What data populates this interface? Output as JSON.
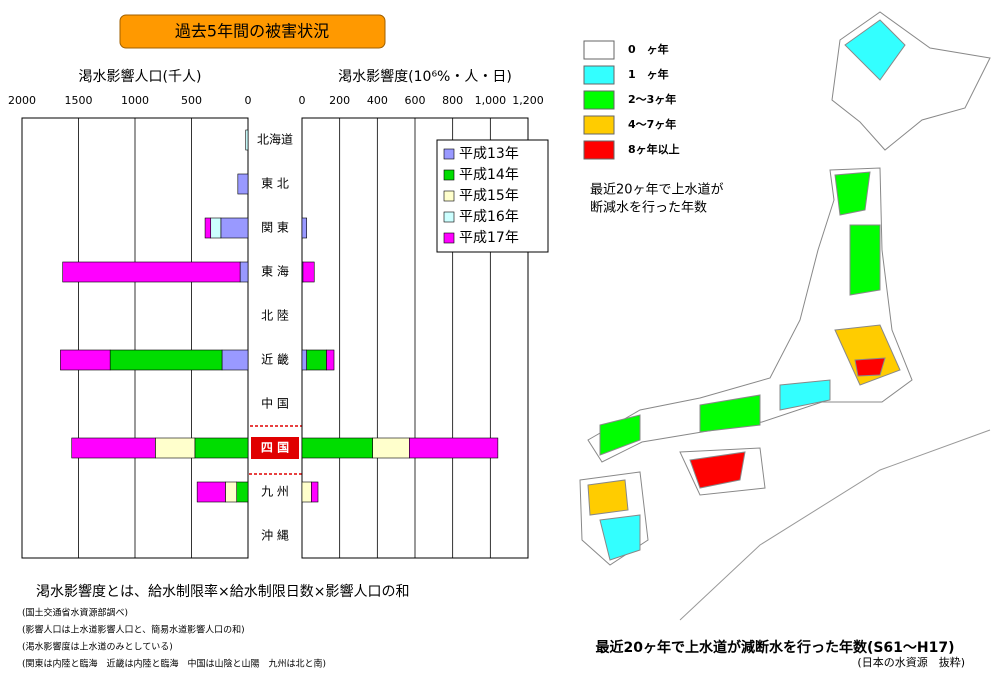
{
  "header": {
    "title": "過去5年間の被害状況"
  },
  "chart_data": {
    "type": "bar",
    "categories": [
      "北海道",
      "東 北",
      "関 東",
      "東 海",
      "北 陸",
      "近 畿",
      "中 国",
      "四 国",
      "九 州",
      "沖 縄"
    ],
    "highlight": 7,
    "x_label": "渇水影響人口(千人)",
    "xlim": [
      2000,
      0
    ],
    "xticks": [
      2000,
      1500,
      1000,
      500,
      0
    ],
    "x2_label": "渇水影響度(10⁶%・人・日)",
    "x2lim": [
      0,
      1200
    ],
    "x2ticks": [
      0,
      200,
      400,
      600,
      800,
      {
        "value": 1000,
        "label": "1,000"
      },
      {
        "value": 1200,
        "label": "1,200"
      }
    ],
    "grid": true,
    "series": [
      {
        "name": "平成13年",
        "color": "#9999ff",
        "values": [
          0,
          90,
          240,
          70,
          0,
          230,
          0,
          0,
          0,
          0
        ],
        "values2": [
          0,
          0,
          25,
          5,
          0,
          25,
          0,
          0,
          0,
          0
        ]
      },
      {
        "name": "平成14年",
        "color": "#00dd00",
        "values": [
          0,
          0,
          0,
          0,
          0,
          990,
          0,
          470,
          100,
          0
        ],
        "values2": [
          0,
          0,
          0,
          0,
          0,
          105,
          0,
          375,
          0,
          0
        ]
      },
      {
        "name": "平成15年",
        "color": "#ffffcc",
        "values": [
          0,
          0,
          0,
          0,
          0,
          0,
          0,
          350,
          100,
          0
        ],
        "values2": [
          0,
          0,
          0,
          0,
          0,
          0,
          0,
          195,
          50,
          0
        ]
      },
      {
        "name": "平成16年",
        "color": "#ccffff",
        "values": [
          20,
          0,
          90,
          0,
          0,
          0,
          0,
          0,
          0,
          0
        ],
        "values2": [
          0,
          0,
          0,
          0,
          0,
          0,
          0,
          0,
          0,
          0
        ]
      },
      {
        "name": "平成17年",
        "color": "#ff00ff",
        "values": [
          0,
          0,
          50,
          1570,
          0,
          440,
          0,
          740,
          250,
          0
        ],
        "values2": [
          0,
          0,
          0,
          60,
          0,
          40,
          0,
          470,
          35,
          0
        ]
      }
    ]
  },
  "notes": {
    "definition": "渇水影響度とは、給水制限率×給水制限日数×影響人口の和",
    "lines": [
      "(国土交通省水資源部調べ)",
      "(影響人口は上水道影響人口と、簡易水道影響人口の和)",
      "(渇水影響度は上水道のみとしている)",
      "(関東は内陸と臨海　近畿は内陸と臨海　中国は山陰と山陽　九州は北と南)"
    ]
  },
  "map": {
    "legend": [
      {
        "label": "0　ヶ年",
        "color": "#ffffff"
      },
      {
        "label": "1　ヶ年",
        "color": "#33ffff"
      },
      {
        "label": "2～3ヶ年",
        "color": "#00ff00"
      },
      {
        "label": "4～7ヶ年",
        "color": "#ffcc00"
      },
      {
        "label": "8ヶ年以上",
        "color": "#ff0000"
      }
    ],
    "note": [
      "最近20ヶ年で上水道が",
      "断減水を行った年数"
    ],
    "caption": "最近20ヶ年で上水道が減断水を行った年数(S61～H17)",
    "source": "(日本の水資源　抜粋)"
  }
}
